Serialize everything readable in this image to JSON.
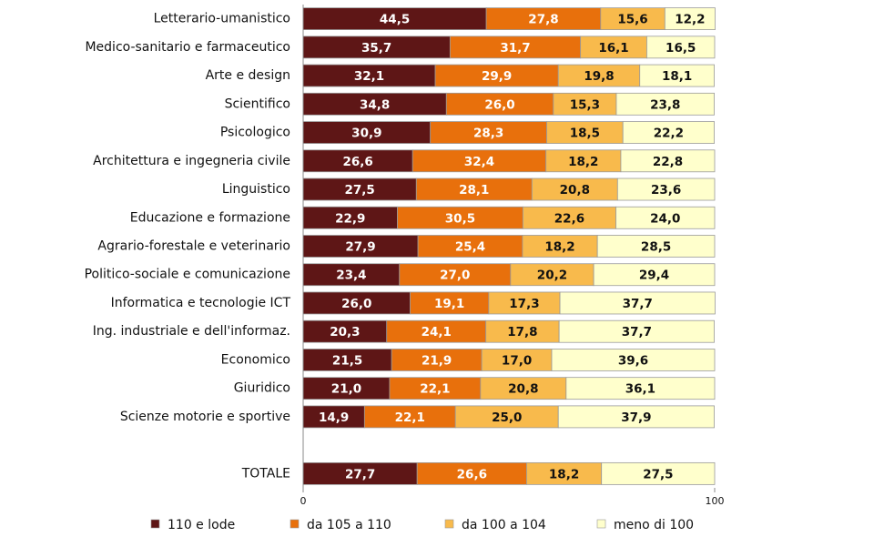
{
  "chart_data": {
    "type": "stacked-bar-horizontal",
    "categories": [
      "Letterario-umanistico",
      "Medico-sanitario e farmaceutico",
      "Arte e design",
      "Scientifico",
      "Psicologico",
      "Architettura e ingegneria civile",
      "Linguistico",
      "Educazione e formazione",
      "Agrario-forestale e veterinario",
      "Politico-sociale e comunicazione",
      "Informatica e tecnologie ICT",
      "Ing. industriale e dell'informaz.",
      "Economico",
      "Giuridico",
      "Scienze motorie e sportive",
      null,
      "TOTALE"
    ],
    "series": [
      {
        "name": "110 e lode",
        "color": "#5e1616",
        "values": [
          44.5,
          35.7,
          32.1,
          34.8,
          30.9,
          26.6,
          27.5,
          22.9,
          27.9,
          23.4,
          26.0,
          20.3,
          21.5,
          21.0,
          14.9,
          null,
          27.7
        ],
        "value_labels": [
          "44,5",
          "35,7",
          "32,1",
          "34,8",
          "30,9",
          "26,6",
          "27,5",
          "22,9",
          "27,9",
          "23,4",
          "26,0",
          "20,3",
          "21,5",
          "21,0",
          "14,9",
          null,
          "27,7"
        ]
      },
      {
        "name": "da 105 a 110",
        "color": "#e8700c",
        "values": [
          27.8,
          31.7,
          29.9,
          26.0,
          28.3,
          32.4,
          28.1,
          30.5,
          25.4,
          27.0,
          19.1,
          24.1,
          21.9,
          22.1,
          22.1,
          null,
          26.6
        ],
        "value_labels": [
          "27,8",
          "31,7",
          "29,9",
          "26,0",
          "28,3",
          "32,4",
          "28,1",
          "30,5",
          "25,4",
          "27,0",
          "19,1",
          "24,1",
          "21,9",
          "22,1",
          "22,1",
          null,
          "26,6"
        ]
      },
      {
        "name": "da 100 a 104",
        "color": "#f8ba4c",
        "values": [
          15.6,
          16.1,
          19.8,
          15.3,
          18.5,
          18.2,
          20.8,
          22.6,
          18.2,
          20.2,
          17.3,
          17.8,
          17.0,
          20.8,
          25.0,
          null,
          18.2
        ],
        "value_labels": [
          "15,6",
          "16,1",
          "19,8",
          "15,3",
          "18,5",
          "18,2",
          "20,8",
          "22,6",
          "18,2",
          "20,2",
          "17,3",
          "17,8",
          "17,0",
          "20,8",
          "25,0",
          null,
          "18,2"
        ]
      },
      {
        "name": "meno di 100",
        "color": "#ffffcc",
        "values": [
          12.2,
          16.5,
          18.1,
          23.8,
          22.2,
          22.8,
          23.6,
          24.0,
          28.5,
          29.4,
          37.7,
          37.7,
          39.6,
          36.1,
          37.9,
          null,
          27.5
        ],
        "value_labels": [
          "12,2",
          "16,5",
          "18,1",
          "23,8",
          "22,2",
          "22,8",
          "23,6",
          "24,0",
          "28,5",
          "29,4",
          "37,7",
          "37,7",
          "39,6",
          "36,1",
          "37,9",
          null,
          "27,5"
        ]
      }
    ],
    "xlim": [
      0,
      100
    ],
    "xticks": [
      0,
      100
    ],
    "legend": "bottom"
  }
}
